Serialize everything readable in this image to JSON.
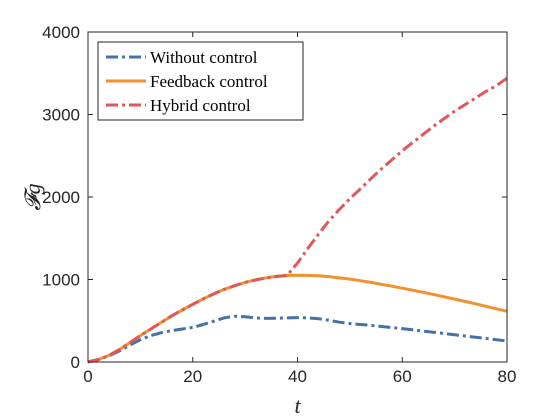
{
  "chart_data": {
    "type": "line",
    "xlabel": "t",
    "ylabel": "𝓕g",
    "xlim": [
      0,
      80
    ],
    "ylim": [
      0,
      4000
    ],
    "xticks": [
      0,
      20,
      40,
      60,
      80
    ],
    "yticks": [
      0,
      1000,
      2000,
      3000,
      4000
    ],
    "grid": false,
    "legend_position": "top-left",
    "series": [
      {
        "name": "Without control",
        "color": "#4472a8",
        "dash": "dashdot",
        "x": [
          0,
          2,
          4,
          6,
          8,
          10,
          12,
          14,
          16,
          18,
          20,
          22,
          24,
          26,
          28,
          30,
          32,
          34,
          36,
          38,
          40,
          42,
          44,
          46,
          48,
          50,
          52,
          54,
          56,
          58,
          60,
          62,
          64,
          66,
          68,
          70,
          72,
          74,
          76,
          78,
          80
        ],
        "y": [
          0,
          30,
          75,
          135,
          205,
          270,
          320,
          355,
          380,
          400,
          420,
          455,
          495,
          535,
          555,
          548,
          535,
          528,
          530,
          535,
          538,
          535,
          525,
          505,
          482,
          465,
          455,
          445,
          430,
          418,
          405,
          390,
          375,
          360,
          345,
          330,
          315,
          300,
          285,
          270,
          255
        ]
      },
      {
        "name": "Feedback control",
        "color": "#f0922e",
        "dash": "solid",
        "x": [
          0,
          2,
          4,
          6,
          8,
          10,
          12,
          14,
          16,
          18,
          20,
          22,
          24,
          26,
          28,
          30,
          32,
          34,
          36,
          38,
          40,
          42,
          44,
          46,
          48,
          50,
          52,
          54,
          56,
          58,
          60,
          62,
          64,
          66,
          68,
          70,
          72,
          74,
          76,
          78,
          80
        ],
        "y": [
          0,
          30,
          80,
          150,
          235,
          320,
          400,
          480,
          560,
          630,
          700,
          765,
          825,
          880,
          925,
          965,
          995,
          1020,
          1038,
          1048,
          1052,
          1050,
          1045,
          1035,
          1020,
          1005,
          985,
          965,
          942,
          920,
          895,
          870,
          845,
          818,
          790,
          763,
          735,
          705,
          675,
          645,
          615
        ]
      },
      {
        "name": "Hybrid control",
        "color": "#e15759",
        "dash": "dashdot",
        "x": [
          0,
          2,
          4,
          6,
          8,
          10,
          12,
          14,
          16,
          18,
          20,
          22,
          24,
          26,
          28,
          30,
          32,
          34,
          36,
          38,
          40,
          42,
          44,
          46,
          48,
          50,
          52,
          54,
          56,
          58,
          60,
          62,
          64,
          66,
          68,
          70,
          72,
          74,
          76,
          78,
          80
        ],
        "y": [
          0,
          30,
          80,
          150,
          235,
          320,
          400,
          480,
          560,
          630,
          700,
          765,
          825,
          880,
          925,
          965,
          995,
          1020,
          1038,
          1048,
          1200,
          1380,
          1550,
          1710,
          1850,
          1980,
          2100,
          2220,
          2340,
          2450,
          2560,
          2660,
          2760,
          2860,
          2950,
          3040,
          3120,
          3200,
          3280,
          3350,
          3440
        ]
      }
    ]
  }
}
